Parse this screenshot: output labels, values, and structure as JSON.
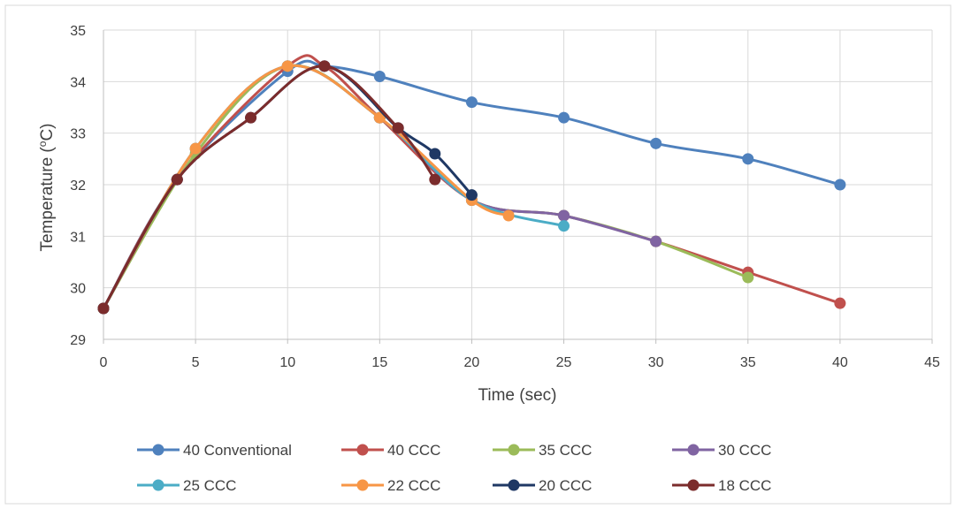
{
  "chart_data": {
    "type": "line",
    "title": "",
    "xlabel": "Time (sec)",
    "ylabel": "Temperature (oC)",
    "ylabel_main": "Temperature (",
    "ylabel_sup": "o",
    "ylabel_end": "C)",
    "xlim": [
      0,
      45
    ],
    "ylim": [
      29,
      35
    ],
    "x_ticks": [
      0,
      5,
      10,
      15,
      20,
      25,
      30,
      35,
      40,
      45
    ],
    "y_ticks": [
      29,
      30,
      31,
      32,
      33,
      34,
      35
    ],
    "grid": true,
    "legend_position": "bottom",
    "smooth": true,
    "series": [
      {
        "name": "40 Conventional",
        "color": "#4f81bd",
        "points": [
          [
            0,
            29.6
          ],
          [
            4,
            32.1
          ],
          [
            10,
            34.2
          ],
          [
            12,
            34.3
          ],
          [
            15,
            34.1
          ],
          [
            20,
            33.6
          ],
          [
            25,
            33.3
          ],
          [
            30,
            32.8
          ],
          [
            35,
            32.5
          ],
          [
            40,
            32.0
          ]
        ]
      },
      {
        "name": "40 CCC",
        "color": "#c0504d",
        "points": [
          [
            0,
            29.6
          ],
          [
            4,
            32.1
          ],
          [
            10,
            34.3
          ],
          [
            12,
            34.3
          ],
          [
            15,
            33.3
          ],
          [
            20,
            31.7
          ],
          [
            25,
            31.4
          ],
          [
            30,
            30.9
          ],
          [
            35,
            30.3
          ],
          [
            40,
            29.7
          ]
        ]
      },
      {
        "name": "35 CCC",
        "color": "#9bbb59",
        "points": [
          [
            0,
            29.6
          ],
          [
            5,
            32.6
          ],
          [
            10,
            34.3
          ],
          [
            15,
            33.3
          ],
          [
            20,
            31.7
          ],
          [
            25,
            31.4
          ],
          [
            30,
            30.9
          ],
          [
            35,
            30.2
          ]
        ]
      },
      {
        "name": "30 CCC",
        "color": "#8064a2",
        "points": [
          [
            0,
            29.6
          ],
          [
            5,
            32.7
          ],
          [
            10,
            34.3
          ],
          [
            15,
            33.3
          ],
          [
            20,
            31.7
          ],
          [
            25,
            31.4
          ],
          [
            30,
            30.9
          ]
        ]
      },
      {
        "name": "25 CCC",
        "color": "#4bacc6",
        "points": [
          [
            0,
            29.6
          ],
          [
            5,
            32.7
          ],
          [
            10,
            34.3
          ],
          [
            15,
            33.3
          ],
          [
            20,
            31.7
          ],
          [
            25,
            31.2
          ]
        ]
      },
      {
        "name": "22 CCC",
        "color": "#f79646",
        "points": [
          [
            0,
            29.6
          ],
          [
            5,
            32.7
          ],
          [
            10,
            34.3
          ],
          [
            15,
            33.3
          ],
          [
            20,
            31.7
          ],
          [
            22,
            31.4
          ]
        ]
      },
      {
        "name": "20 CCC",
        "color": "#1f3864",
        "points": [
          [
            0,
            29.6
          ],
          [
            4,
            32.1
          ],
          [
            8,
            33.3
          ],
          [
            12,
            34.3
          ],
          [
            16,
            33.1
          ],
          [
            18,
            32.6
          ],
          [
            20,
            31.8
          ]
        ]
      },
      {
        "name": "18 CCC",
        "color": "#7b2c2c",
        "points": [
          [
            0,
            29.6
          ],
          [
            4,
            32.1
          ],
          [
            8,
            33.3
          ],
          [
            12,
            34.3
          ],
          [
            16,
            33.1
          ],
          [
            18,
            32.1
          ]
        ]
      }
    ]
  }
}
